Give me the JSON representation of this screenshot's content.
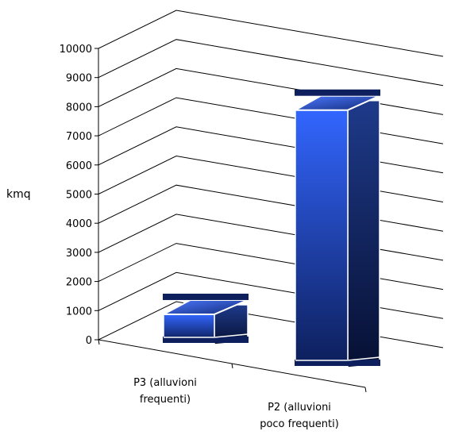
{
  "chart_data": {
    "type": "bar",
    "style": "3d-column",
    "categories": [
      "P3 (alluvioni frequenti)",
      "P2 (alluvioni poco frequenti)"
    ],
    "category_lines": [
      [
        "P3 (alluvioni",
        "frequenti)"
      ],
      [
        "P2 (alluvioni",
        "poco frequenti)"
      ]
    ],
    "values": [
      1200,
      9000
    ],
    "title": "",
    "xlabel": "",
    "ylabel": "kmq",
    "ylim": [
      0,
      10000
    ],
    "yticks": [
      0,
      1000,
      2000,
      3000,
      4000,
      5000,
      6000,
      7000,
      8000,
      9000,
      10000
    ],
    "grid": true,
    "legend": "none",
    "colors": {
      "front_light": "#3366ff",
      "front_dark": "#0d1f5c",
      "side_light": "#1e3a8a",
      "side_dark": "#071033",
      "top_light": "#4d79ff",
      "top_dark": "#122b7a",
      "grid": "#000000",
      "edge": "#ffffff"
    }
  }
}
